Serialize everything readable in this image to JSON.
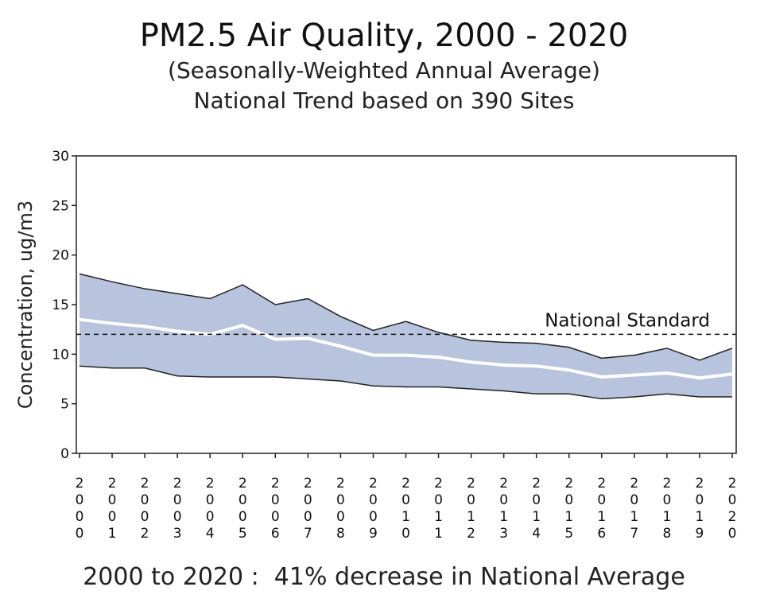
{
  "chart_data": {
    "type": "area",
    "title": "PM2.5 Air Quality, 2000 - 2020",
    "subtitle": "(Seasonally-Weighted Annual Average)",
    "subtitle2": "National Trend based on 390 Sites",
    "ylabel": "Concentration, ug/m3",
    "xlabel": "",
    "ylim": [
      0,
      30
    ],
    "yticks": [
      0,
      5,
      10,
      15,
      20,
      25,
      30
    ],
    "x": [
      "2000",
      "2001",
      "2002",
      "2003",
      "2004",
      "2005",
      "2006",
      "2007",
      "2008",
      "2009",
      "2010",
      "2011",
      "2012",
      "2013",
      "2014",
      "2015",
      "2016",
      "2017",
      "2018",
      "2019",
      "2020"
    ],
    "series": [
      {
        "role": "upper_bound",
        "values": [
          18.1,
          17.3,
          16.6,
          16.1,
          15.6,
          17.0,
          15.0,
          15.6,
          13.8,
          12.4,
          13.3,
          12.2,
          11.4,
          11.2,
          11.1,
          10.7,
          9.6,
          9.9,
          10.6,
          9.4,
          10.6
        ]
      },
      {
        "role": "average",
        "values": [
          13.5,
          13.1,
          12.8,
          12.3,
          12.0,
          12.9,
          11.5,
          11.6,
          10.8,
          9.9,
          9.9,
          9.7,
          9.2,
          8.9,
          8.8,
          8.4,
          7.7,
          7.9,
          8.1,
          7.6,
          8.0
        ]
      },
      {
        "role": "lower_bound",
        "values": [
          8.8,
          8.6,
          8.6,
          7.8,
          7.7,
          7.7,
          7.7,
          7.5,
          7.3,
          6.8,
          6.7,
          6.7,
          6.5,
          6.3,
          6.0,
          6.0,
          5.5,
          5.7,
          6.0,
          5.7,
          5.7
        ]
      }
    ],
    "reference_line": {
      "label": "National Standard",
      "value": 12
    },
    "colors": {
      "band": "#b8c4de",
      "average": "#ffffff",
      "bound": "#222222",
      "reference": "#111111"
    },
    "grid": false,
    "legend": "none",
    "footer": "2000 to 2020 :  41% decrease in National Average"
  }
}
